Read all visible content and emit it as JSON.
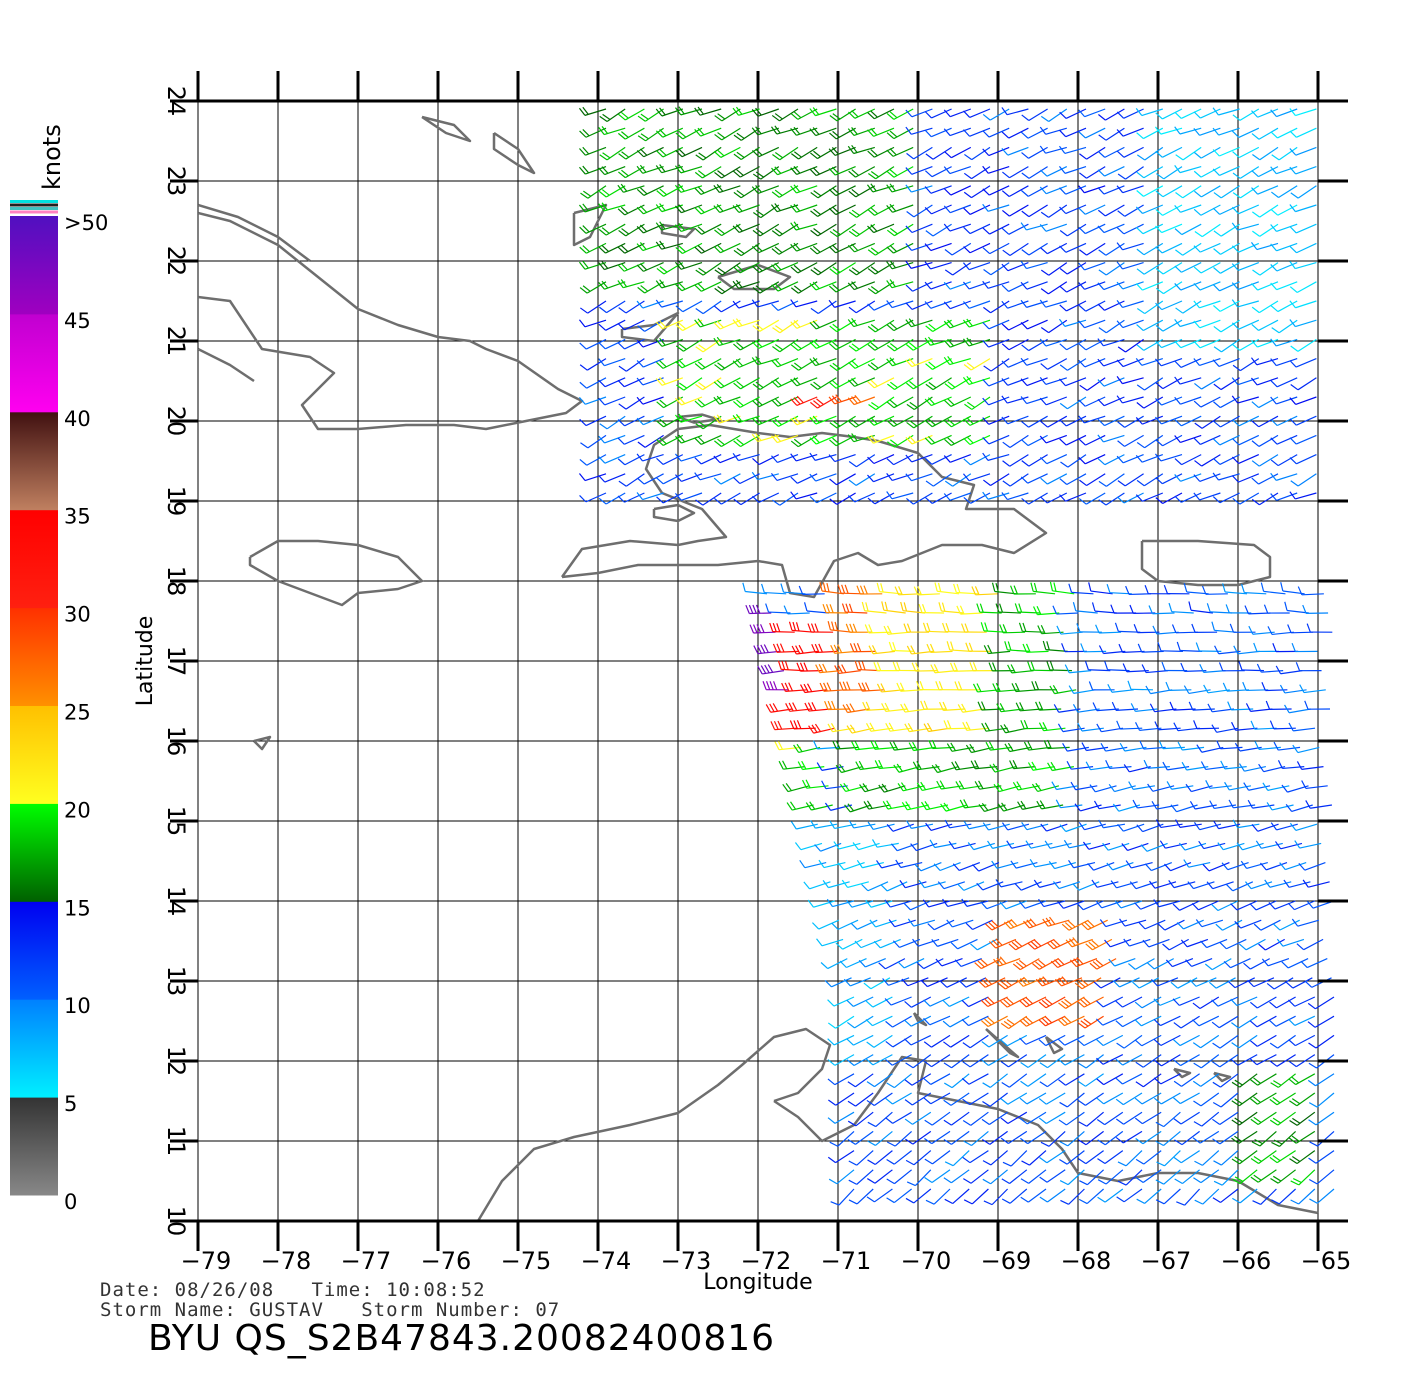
{
  "colorbar": {
    "title": "knots",
    "labels": [
      ">50",
      "45",
      "40",
      "35",
      "30",
      "25",
      "20",
      "15",
      "10",
      "5",
      "0"
    ],
    "segments": [
      {
        "from": 0,
        "to": 5,
        "top": "#333333",
        "bottom": "#888888"
      },
      {
        "from": 5,
        "to": 10,
        "top": "#0080ff",
        "bottom": "#00f0ff"
      },
      {
        "from": 10,
        "to": 15,
        "top": "#0000f0",
        "bottom": "#0060ff"
      },
      {
        "from": 15,
        "to": 20,
        "top": "#00ff00",
        "bottom": "#006000"
      },
      {
        "from": 20,
        "to": 25,
        "top": "#ffc000",
        "bottom": "#ffff20"
      },
      {
        "from": 25,
        "to": 30,
        "top": "#ff3000",
        "bottom": "#ff9000"
      },
      {
        "from": 30,
        "to": 35,
        "top": "#ff0000",
        "bottom": "#ff2010"
      },
      {
        "from": 35,
        "to": 40,
        "top": "#401010",
        "bottom": "#c08060"
      },
      {
        "from": 40,
        "to": 45,
        "top": "#c000d0",
        "bottom": "#ff00f0"
      },
      {
        "from": 45,
        "to": 50,
        "top": "#5010c0",
        "bottom": "#a000c0"
      }
    ],
    "overflow_colors": [
      "#00e0e0",
      "#202020",
      "#40c0c0",
      "#ff80c0"
    ]
  },
  "map": {
    "xaxis": {
      "title": "Longitude",
      "range": [
        -79,
        -64.6
      ],
      "ticks": [
        -79,
        -78,
        -77,
        -76,
        -75,
        -74,
        -73,
        -72,
        -71,
        -70,
        -69,
        -68,
        -67,
        -66,
        -65
      ],
      "tick_labels": [
        "−79",
        "−78",
        "−77",
        "−76",
        "−75",
        "−74",
        "−73",
        "−72",
        "−71",
        "−70",
        "−69",
        "−68",
        "−67",
        "−66",
        "−65"
      ]
    },
    "yaxis": {
      "title": "Latitude",
      "range": [
        10,
        24
      ],
      "ticks": [
        10,
        11,
        12,
        13,
        14,
        15,
        16,
        17,
        18,
        19,
        20,
        21,
        22,
        23,
        24
      ],
      "tick_labels": [
        "10",
        "11",
        "12",
        "13",
        "14",
        "15",
        "16",
        "17",
        "18",
        "19",
        "20",
        "21",
        "22",
        "23",
        "24"
      ]
    },
    "grid": true,
    "coastline_color": "#6e6e6e",
    "coastlines": [
      {
        "name": "Cuba",
        "pts": [
          [
            -79,
            22.6
          ],
          [
            -78.6,
            22.5
          ],
          [
            -78,
            22.2
          ],
          [
            -77.5,
            21.8
          ],
          [
            -77,
            21.4
          ],
          [
            -76.5,
            21.2
          ],
          [
            -76,
            21.05
          ],
          [
            -75.6,
            21.0
          ],
          [
            -75.4,
            20.9
          ],
          [
            -75,
            20.75
          ],
          [
            -74.5,
            20.4
          ],
          [
            -74.2,
            20.25
          ],
          [
            -74.4,
            20.1
          ],
          [
            -74.9,
            20.0
          ],
          [
            -75.4,
            19.9
          ],
          [
            -75.8,
            19.95
          ],
          [
            -76.4,
            19.95
          ],
          [
            -77.0,
            19.9
          ],
          [
            -77.5,
            19.9
          ],
          [
            -77.7,
            20.2
          ],
          [
            -77.3,
            20.6
          ],
          [
            -77.6,
            20.8
          ],
          [
            -78.2,
            20.9
          ],
          [
            -78.6,
            21.5
          ],
          [
            -79,
            21.55
          ]
        ]
      },
      {
        "name": "Cuba north cays",
        "pts": [
          [
            -79,
            22.7
          ],
          [
            -78.5,
            22.55
          ],
          [
            -78.0,
            22.3
          ],
          [
            -77.6,
            22.0
          ]
        ]
      },
      {
        "name": "Jardines de la Reina",
        "pts": [
          [
            -79,
            20.9
          ],
          [
            -78.6,
            20.7
          ],
          [
            -78.3,
            20.5
          ]
        ]
      },
      {
        "name": "Hispaniola",
        "pts": [
          [
            -74.45,
            18.05
          ],
          [
            -74.2,
            18.4
          ],
          [
            -73.6,
            18.5
          ],
          [
            -73.0,
            18.45
          ],
          [
            -72.75,
            18.5
          ],
          [
            -72.4,
            18.55
          ],
          [
            -72.7,
            18.9
          ],
          [
            -73.2,
            19.1
          ],
          [
            -73.4,
            19.4
          ],
          [
            -73.3,
            19.7
          ],
          [
            -73.0,
            19.9
          ],
          [
            -72.6,
            19.95
          ],
          [
            -72.0,
            19.85
          ],
          [
            -71.6,
            19.8
          ],
          [
            -71.2,
            19.85
          ],
          [
            -70.8,
            19.8
          ],
          [
            -70.5,
            19.75
          ],
          [
            -70.0,
            19.6
          ],
          [
            -69.7,
            19.3
          ],
          [
            -69.3,
            19.2
          ],
          [
            -69.4,
            18.9
          ],
          [
            -68.8,
            18.9
          ],
          [
            -68.4,
            18.6
          ],
          [
            -68.8,
            18.35
          ],
          [
            -69.2,
            18.45
          ],
          [
            -69.7,
            18.45
          ],
          [
            -70.2,
            18.25
          ],
          [
            -70.5,
            18.2
          ],
          [
            -70.75,
            18.35
          ],
          [
            -71.05,
            18.25
          ],
          [
            -71.3,
            17.8
          ],
          [
            -71.6,
            17.85
          ],
          [
            -71.7,
            18.2
          ],
          [
            -72.0,
            18.25
          ],
          [
            -72.5,
            18.2
          ],
          [
            -73.0,
            18.2
          ],
          [
            -73.5,
            18.2
          ],
          [
            -74.0,
            18.1
          ],
          [
            -74.45,
            18.05
          ]
        ]
      },
      {
        "name": "Gonave",
        "pts": [
          [
            -73.3,
            18.9
          ],
          [
            -73.0,
            18.95
          ],
          [
            -72.8,
            18.85
          ],
          [
            -73.0,
            18.75
          ],
          [
            -73.3,
            18.8
          ],
          [
            -73.3,
            18.9
          ]
        ]
      },
      {
        "name": "Tortuga",
        "pts": [
          [
            -73.0,
            20.05
          ],
          [
            -72.7,
            20.08
          ],
          [
            -72.5,
            20.02
          ],
          [
            -72.8,
            19.98
          ],
          [
            -73.0,
            20.05
          ]
        ]
      },
      {
        "name": "Jamaica",
        "pts": [
          [
            -78.35,
            18.3
          ],
          [
            -78.0,
            18.5
          ],
          [
            -77.5,
            18.5
          ],
          [
            -77.0,
            18.45
          ],
          [
            -76.5,
            18.3
          ],
          [
            -76.2,
            18.0
          ],
          [
            -76.5,
            17.9
          ],
          [
            -77.0,
            17.85
          ],
          [
            -77.2,
            17.7
          ],
          [
            -77.6,
            17.85
          ],
          [
            -78.0,
            18.0
          ],
          [
            -78.35,
            18.2
          ],
          [
            -78.35,
            18.3
          ]
        ]
      },
      {
        "name": "Puerto Rico",
        "pts": [
          [
            -67.2,
            18.5
          ],
          [
            -66.5,
            18.5
          ],
          [
            -65.8,
            18.45
          ],
          [
            -65.6,
            18.3
          ],
          [
            -65.6,
            18.05
          ],
          [
            -66.0,
            17.95
          ],
          [
            -66.5,
            17.95
          ],
          [
            -67.0,
            18.0
          ],
          [
            -67.2,
            18.15
          ],
          [
            -67.2,
            18.5
          ]
        ]
      },
      {
        "name": "Inagua",
        "pts": [
          [
            -73.7,
            21.15
          ],
          [
            -73.3,
            21.2
          ],
          [
            -73.0,
            21.35
          ],
          [
            -73.3,
            21.0
          ],
          [
            -73.7,
            21.05
          ],
          [
            -73.7,
            21.15
          ]
        ]
      },
      {
        "name": "Caicos",
        "pts": [
          [
            -72.5,
            21.8
          ],
          [
            -72.0,
            21.95
          ],
          [
            -71.6,
            21.8
          ],
          [
            -71.8,
            21.65
          ],
          [
            -72.3,
            21.65
          ],
          [
            -72.5,
            21.8
          ]
        ]
      },
      {
        "name": "Acklins",
        "pts": [
          [
            -74.3,
            22.6
          ],
          [
            -73.9,
            22.7
          ],
          [
            -74.1,
            22.3
          ],
          [
            -74.3,
            22.2
          ],
          [
            -74.3,
            22.6
          ]
        ]
      },
      {
        "name": "Long Island",
        "pts": [
          [
            -75.3,
            23.6
          ],
          [
            -75.0,
            23.4
          ],
          [
            -74.8,
            23.1
          ],
          [
            -75.0,
            23.2
          ],
          [
            -75.3,
            23.4
          ],
          [
            -75.3,
            23.6
          ]
        ]
      },
      {
        "name": "Exuma",
        "pts": [
          [
            -76.2,
            23.8
          ],
          [
            -75.9,
            23.6
          ],
          [
            -75.6,
            23.5
          ],
          [
            -75.8,
            23.7
          ],
          [
            -76.2,
            23.8
          ]
        ]
      },
      {
        "name": "Mayaguana",
        "pts": [
          [
            -73.2,
            22.45
          ],
          [
            -72.8,
            22.4
          ],
          [
            -72.9,
            22.3
          ],
          [
            -73.2,
            22.35
          ],
          [
            -73.2,
            22.45
          ]
        ]
      },
      {
        "name": "Colombia Guajira",
        "pts": [
          [
            -75.5,
            10.0
          ],
          [
            -75.2,
            10.5
          ],
          [
            -74.8,
            10.9
          ],
          [
            -74.3,
            11.05
          ],
          [
            -73.6,
            11.2
          ],
          [
            -73.0,
            11.35
          ],
          [
            -72.5,
            11.7
          ],
          [
            -72.2,
            11.95
          ],
          [
            -71.8,
            12.3
          ],
          [
            -71.4,
            12.4
          ],
          [
            -71.1,
            12.2
          ],
          [
            -71.2,
            11.9
          ],
          [
            -71.5,
            11.6
          ],
          [
            -71.8,
            11.5
          ]
        ]
      },
      {
        "name": "Venezuela",
        "pts": [
          [
            -71.8,
            11.5
          ],
          [
            -71.5,
            11.3
          ],
          [
            -71.2,
            11.0
          ],
          [
            -70.8,
            11.2
          ],
          [
            -70.5,
            11.6
          ],
          [
            -70.2,
            12.05
          ],
          [
            -69.9,
            12.0
          ],
          [
            -70.0,
            11.6
          ],
          [
            -69.5,
            11.5
          ],
          [
            -69.0,
            11.4
          ],
          [
            -68.5,
            11.2
          ],
          [
            -68.2,
            10.9
          ],
          [
            -68.0,
            10.6
          ],
          [
            -67.5,
            10.5
          ],
          [
            -67.0,
            10.6
          ],
          [
            -66.5,
            10.6
          ],
          [
            -66.0,
            10.5
          ],
          [
            -65.5,
            10.2
          ],
          [
            -65.0,
            10.1
          ]
        ]
      },
      {
        "name": "Aruba",
        "pts": [
          [
            -70.05,
            12.6
          ],
          [
            -69.9,
            12.45
          ],
          [
            -70.0,
            12.5
          ],
          [
            -70.05,
            12.6
          ]
        ]
      },
      {
        "name": "Curacao",
        "pts": [
          [
            -69.15,
            12.4
          ],
          [
            -68.75,
            12.05
          ],
          [
            -68.85,
            12.1
          ],
          [
            -69.15,
            12.4
          ]
        ]
      },
      {
        "name": "Bonaire",
        "pts": [
          [
            -68.4,
            12.3
          ],
          [
            -68.2,
            12.15
          ],
          [
            -68.3,
            12.1
          ],
          [
            -68.4,
            12.3
          ]
        ]
      },
      {
        "name": "Los Roques",
        "pts": [
          [
            -66.8,
            11.9
          ],
          [
            -66.6,
            11.85
          ],
          [
            -66.7,
            11.8
          ],
          [
            -66.8,
            11.9
          ]
        ]
      },
      {
        "name": "Orchila",
        "pts": [
          [
            -66.3,
            11.85
          ],
          [
            -66.1,
            11.8
          ],
          [
            -66.2,
            11.75
          ],
          [
            -66.3,
            11.85
          ]
        ]
      },
      {
        "name": "Navassa",
        "pts": [
          [
            -78.3,
            16.0
          ],
          [
            -78.1,
            16.05
          ],
          [
            -78.2,
            15.9
          ],
          [
            -78.3,
            16.0
          ]
        ]
      }
    ]
  },
  "wind_barbs": {
    "direction": "wind barbs, colored by wind speed in knots",
    "swaths": [
      {
        "lon_min": -74.0,
        "lon_max": -64.8,
        "lat_min": 19.0,
        "lat_max": 24.0,
        "speed": 12,
        "toward_deg": 255
      },
      {
        "lon_min": -72.0,
        "lon_max": -64.8,
        "lat_min": 10.3,
        "lat_max": 17.9,
        "speed": 11,
        "toward_deg": 250
      }
    ],
    "zones": [
      {
        "lon_min": -74.0,
        "lon_max": -70.0,
        "lat_min": 21.5,
        "lat_max": 24.0,
        "speed": 17
      },
      {
        "lon_min": -73.0,
        "lon_max": -69.0,
        "lat_min": 19.8,
        "lat_max": 21.3,
        "speed": 19
      },
      {
        "lon_min": -71.3,
        "lon_max": -70.4,
        "lat_min": 20.1,
        "lat_max": 20.5,
        "speed": 29
      },
      {
        "lon_min": -67.0,
        "lon_max": -64.8,
        "lat_min": 21.0,
        "lat_max": 24.0,
        "speed": 7
      },
      {
        "lon_min": -70.8,
        "lon_max": -68.0,
        "lat_min": 15.0,
        "lat_max": 18.0,
        "speed": 18
      },
      {
        "lon_min": -70.8,
        "lon_max": -69.0,
        "lat_min": 16.0,
        "lat_max": 18.0,
        "speed": 22
      },
      {
        "lon_min": -71.0,
        "lon_max": -70.4,
        "lat_min": 16.3,
        "lat_max": 17.9,
        "speed": 27
      },
      {
        "lon_min": -71.6,
        "lon_max": -71.0,
        "lat_min": 16.0,
        "lat_max": 17.5,
        "speed": 33
      },
      {
        "lon_min": -72.0,
        "lon_max": -71.6,
        "lat_min": 16.3,
        "lat_max": 17.8,
        "speed": 47
      },
      {
        "lon_min": -72.0,
        "lon_max": -71.0,
        "lat_min": 15.0,
        "lat_max": 16.0,
        "speed": 19
      },
      {
        "lon_min": -72.0,
        "lon_max": -70.2,
        "lat_min": 12.0,
        "lat_max": 15.0,
        "speed": 8
      },
      {
        "lon_min": -69.0,
        "lon_max": -67.5,
        "lat_min": 12.5,
        "lat_max": 14.0,
        "speed": 28
      },
      {
        "lon_min": -66.0,
        "lon_max": -65.0,
        "lat_min": 10.5,
        "lat_max": 12.0,
        "speed": 17
      }
    ]
  },
  "footer": {
    "date_line": "Date: 08/26/08   Time: 10:08:52",
    "storm_line": "Storm Name: GUSTAV   Storm Number: 07",
    "file_title": "BYU  QS_S2B47843.20082400816"
  }
}
